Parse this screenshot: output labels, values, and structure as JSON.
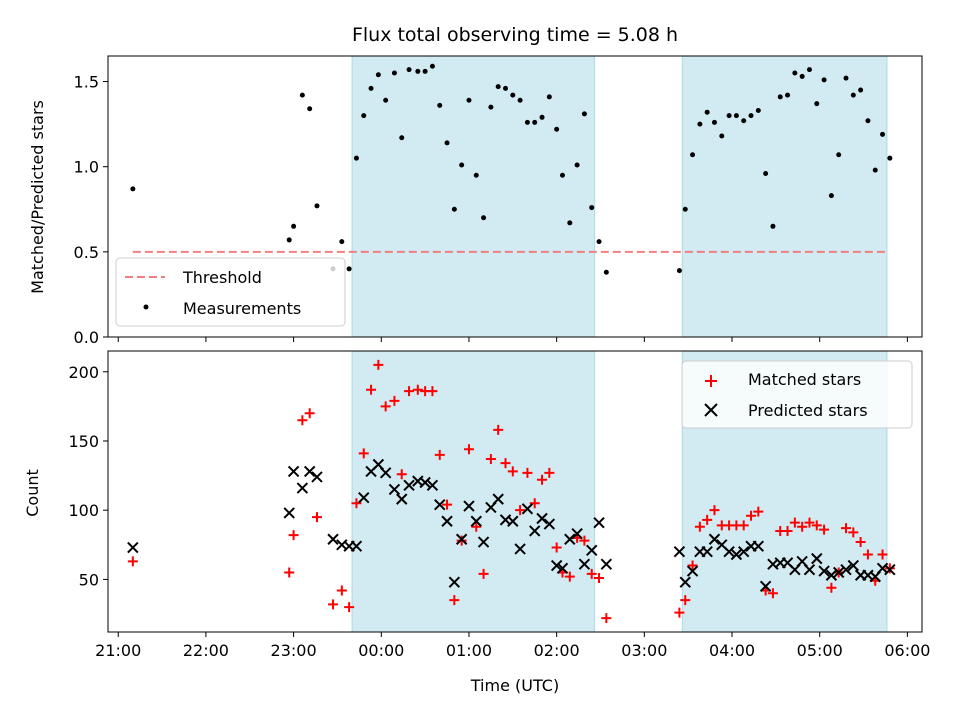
{
  "figure": {
    "title": "Flux total observing time = 5.08 h",
    "xlabel": "Time (UTC)",
    "x_ticks": [
      "21:00",
      "22:00",
      "23:00",
      "00:00",
      "01:00",
      "02:00",
      "03:00",
      "04:00",
      "05:00",
      "06:00"
    ]
  },
  "chart_data": [
    {
      "type": "scatter",
      "ylabel": "Matched/Predicted stars",
      "ylim": [
        0,
        1.65
      ],
      "y_ticks": [
        "0.0",
        "0.5",
        "1.0",
        "1.5"
      ],
      "xlim": [
        "20:53",
        "06:10"
      ],
      "grid": false,
      "legend_position": "lower-left",
      "colors": {
        "threshold": "#f08080",
        "measurements": "#000000",
        "band": "#add8e6"
      },
      "shaded_intervals": [
        [
          "23:40",
          "02:26"
        ],
        [
          "03:26",
          "05:46"
        ]
      ],
      "threshold": {
        "name": "Threshold",
        "value": 0.5,
        "x_start": "21:10",
        "x_end": "05:46"
      },
      "series": [
        {
          "name": "Measurements",
          "points": [
            [
              "21:10",
              0.87
            ],
            [
              "22:57",
              0.57
            ],
            [
              "23:00",
              0.65
            ],
            [
              "23:06",
              1.42
            ],
            [
              "23:11",
              1.34
            ],
            [
              "23:16",
              0.77
            ],
            [
              "23:27",
              0.4
            ],
            [
              "23:33",
              0.56
            ],
            [
              "23:38",
              0.4
            ],
            [
              "23:43",
              1.05
            ],
            [
              "23:48",
              1.3
            ],
            [
              "23:53",
              1.46
            ],
            [
              "23:58",
              1.54
            ],
            [
              "00:03",
              1.39
            ],
            [
              "00:09",
              1.55
            ],
            [
              "00:14",
              1.17
            ],
            [
              "00:19",
              1.57
            ],
            [
              "00:25",
              1.56
            ],
            [
              "00:30",
              1.56
            ],
            [
              "00:35",
              1.59
            ],
            [
              "00:40",
              1.36
            ],
            [
              "00:45",
              1.14
            ],
            [
              "00:50",
              0.75
            ],
            [
              "00:55",
              1.01
            ],
            [
              "01:00",
              1.39
            ],
            [
              "01:05",
              0.95
            ],
            [
              "01:10",
              0.7
            ],
            [
              "01:15",
              1.35
            ],
            [
              "01:20",
              1.47
            ],
            [
              "01:25",
              1.46
            ],
            [
              "01:30",
              1.42
            ],
            [
              "01:35",
              1.39
            ],
            [
              "01:40",
              1.26
            ],
            [
              "01:45",
              1.26
            ],
            [
              "01:50",
              1.29
            ],
            [
              "01:55",
              1.41
            ],
            [
              "02:00",
              1.22
            ],
            [
              "02:04",
              0.95
            ],
            [
              "02:09",
              0.67
            ],
            [
              "02:14",
              1.01
            ],
            [
              "02:19",
              1.31
            ],
            [
              "02:24",
              0.76
            ],
            [
              "02:29",
              0.56
            ],
            [
              "02:34",
              0.38
            ],
            [
              "03:24",
              0.39
            ],
            [
              "03:28",
              0.75
            ],
            [
              "03:33",
              1.07
            ],
            [
              "03:38",
              1.25
            ],
            [
              "03:43",
              1.32
            ],
            [
              "03:48",
              1.26
            ],
            [
              "03:53",
              1.18
            ],
            [
              "03:58",
              1.3
            ],
            [
              "04:03",
              1.3
            ],
            [
              "04:08",
              1.27
            ],
            [
              "04:13",
              1.3
            ],
            [
              "04:18",
              1.33
            ],
            [
              "04:23",
              0.96
            ],
            [
              "04:28",
              0.65
            ],
            [
              "04:33",
              1.41
            ],
            [
              "04:38",
              1.42
            ],
            [
              "04:43",
              1.55
            ],
            [
              "04:48",
              1.53
            ],
            [
              "04:53",
              1.57
            ],
            [
              "04:58",
              1.37
            ],
            [
              "05:03",
              1.51
            ],
            [
              "05:08",
              0.83
            ],
            [
              "05:13",
              1.07
            ],
            [
              "05:18",
              1.52
            ],
            [
              "05:23",
              1.42
            ],
            [
              "05:28",
              1.45
            ],
            [
              "05:33",
              1.27
            ],
            [
              "05:38",
              0.98
            ],
            [
              "05:43",
              1.19
            ],
            [
              "05:48",
              1.05
            ]
          ]
        }
      ]
    },
    {
      "type": "scatter",
      "ylabel": "Count",
      "ylim": [
        12,
        215
      ],
      "y_ticks": [
        "50",
        "100",
        "150",
        "200"
      ],
      "xlim": [
        "20:53",
        "06:10"
      ],
      "grid": false,
      "legend_position": "top-right",
      "colors": {
        "matched": "#ff0000",
        "predicted": "#000000",
        "band": "#add8e6"
      },
      "shaded_intervals": [
        [
          "23:40",
          "02:26"
        ],
        [
          "03:26",
          "05:46"
        ]
      ],
      "series": [
        {
          "name": "Matched stars",
          "marker": "plus",
          "points": [
            [
              "21:10",
              63
            ],
            [
              "22:57",
              55
            ],
            [
              "23:00",
              82
            ],
            [
              "23:06",
              165
            ],
            [
              "23:11",
              170
            ],
            [
              "23:16",
              95
            ],
            [
              "23:27",
              32
            ],
            [
              "23:33",
              42
            ],
            [
              "23:38",
              30
            ],
            [
              "23:43",
              105
            ],
            [
              "23:48",
              141
            ],
            [
              "23:53",
              187
            ],
            [
              "23:58",
              205
            ],
            [
              "00:03",
              175
            ],
            [
              "00:09",
              179
            ],
            [
              "00:14",
              126
            ],
            [
              "00:19",
              186
            ],
            [
              "00:25",
              187
            ],
            [
              "00:30",
              186
            ],
            [
              "00:35",
              186
            ],
            [
              "00:40",
              140
            ],
            [
              "00:45",
              104
            ],
            [
              "00:50",
              35
            ],
            [
              "00:55",
              78
            ],
            [
              "01:00",
              144
            ],
            [
              "01:05",
              88
            ],
            [
              "01:10",
              54
            ],
            [
              "01:15",
              137
            ],
            [
              "01:20",
              158
            ],
            [
              "01:25",
              134
            ],
            [
              "01:30",
              128
            ],
            [
              "01:35",
              100
            ],
            [
              "01:40",
              127
            ],
            [
              "01:45",
              105
            ],
            [
              "01:50",
              122
            ],
            [
              "01:55",
              127
            ],
            [
              "02:00",
              73
            ],
            [
              "02:04",
              55
            ],
            [
              "02:09",
              52
            ],
            [
              "02:14",
              80
            ],
            [
              "02:19",
              78
            ],
            [
              "02:24",
              54
            ],
            [
              "02:29",
              51
            ],
            [
              "02:34",
              22
            ],
            [
              "03:24",
              26
            ],
            [
              "03:28",
              35
            ],
            [
              "03:33",
              60
            ],
            [
              "03:38",
              88
            ],
            [
              "03:43",
              93
            ],
            [
              "03:48",
              100
            ],
            [
              "03:53",
              89
            ],
            [
              "03:58",
              89
            ],
            [
              "04:03",
              89
            ],
            [
              "04:08",
              89
            ],
            [
              "04:13",
              96
            ],
            [
              "04:18",
              99
            ],
            [
              "04:23",
              42
            ],
            [
              "04:28",
              40
            ],
            [
              "04:33",
              85
            ],
            [
              "04:38",
              85
            ],
            [
              "04:43",
              91
            ],
            [
              "04:48",
              88
            ],
            [
              "04:53",
              91
            ],
            [
              "04:58",
              89
            ],
            [
              "05:03",
              86
            ],
            [
              "05:08",
              44
            ],
            [
              "05:13",
              55
            ],
            [
              "05:18",
              87
            ],
            [
              "05:23",
              84
            ],
            [
              "05:28",
              77
            ],
            [
              "05:33",
              68
            ],
            [
              "05:38",
              49
            ],
            [
              "05:43",
              68
            ],
            [
              "05:48",
              58
            ]
          ]
        },
        {
          "name": "Predicted stars",
          "marker": "cross",
          "points": [
            [
              "21:10",
              73
            ],
            [
              "22:57",
              98
            ],
            [
              "23:00",
              128
            ],
            [
              "23:06",
              116
            ],
            [
              "23:11",
              128
            ],
            [
              "23:16",
              124
            ],
            [
              "23:27",
              79
            ],
            [
              "23:33",
              75
            ],
            [
              "23:38",
              74
            ],
            [
              "23:43",
              74
            ],
            [
              "23:48",
              109
            ],
            [
              "23:53",
              128
            ],
            [
              "23:58",
              133
            ],
            [
              "00:03",
              127
            ],
            [
              "00:09",
              115
            ],
            [
              "00:14",
              108
            ],
            [
              "00:19",
              118
            ],
            [
              "00:25",
              121
            ],
            [
              "00:30",
              120
            ],
            [
              "00:35",
              118
            ],
            [
              "00:40",
              104
            ],
            [
              "00:45",
              92
            ],
            [
              "00:50",
              48
            ],
            [
              "00:55",
              79
            ],
            [
              "01:00",
              103
            ],
            [
              "01:05",
              92
            ],
            [
              "01:10",
              77
            ],
            [
              "01:15",
              102
            ],
            [
              "01:20",
              108
            ],
            [
              "01:25",
              93
            ],
            [
              "01:30",
              92
            ],
            [
              "01:35",
              72
            ],
            [
              "01:40",
              101
            ],
            [
              "01:45",
              85
            ],
            [
              "01:50",
              94
            ],
            [
              "01:55",
              90
            ],
            [
              "02:00",
              60
            ],
            [
              "02:04",
              58
            ],
            [
              "02:09",
              79
            ],
            [
              "02:14",
              83
            ],
            [
              "02:19",
              61
            ],
            [
              "02:24",
              71
            ],
            [
              "02:29",
              91
            ],
            [
              "02:34",
              61
            ],
            [
              "03:24",
              70
            ],
            [
              "03:28",
              48
            ],
            [
              "03:33",
              56
            ],
            [
              "03:38",
              70
            ],
            [
              "03:43",
              70
            ],
            [
              "03:48",
              79
            ],
            [
              "03:53",
              75
            ],
            [
              "03:58",
              70
            ],
            [
              "04:03",
              68
            ],
            [
              "04:08",
              70
            ],
            [
              "04:13",
              74
            ],
            [
              "04:18",
              74
            ],
            [
              "04:23",
              45
            ],
            [
              "04:28",
              61
            ],
            [
              "04:33",
              62
            ],
            [
              "04:38",
              62
            ],
            [
              "04:43",
              57
            ],
            [
              "04:48",
              63
            ],
            [
              "04:53",
              57
            ],
            [
              "04:58",
              65
            ],
            [
              "05:03",
              56
            ],
            [
              "05:08",
              53
            ],
            [
              "05:13",
              55
            ],
            [
              "05:18",
              57
            ],
            [
              "05:23",
              60
            ],
            [
              "05:28",
              53
            ],
            [
              "05:33",
              53
            ],
            [
              "05:38",
              52
            ],
            [
              "05:43",
              58
            ],
            [
              "05:48",
              57
            ]
          ]
        }
      ]
    }
  ]
}
